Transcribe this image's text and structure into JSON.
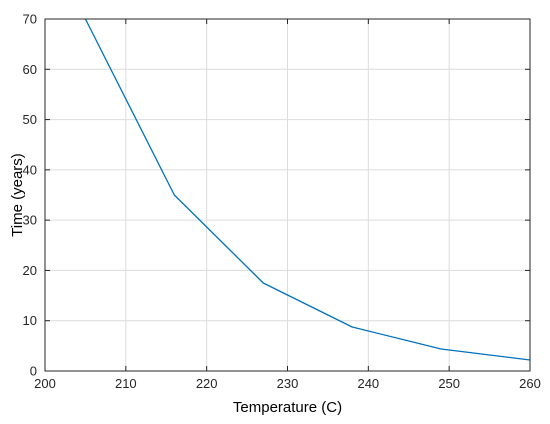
{
  "chart_data": {
    "type": "line",
    "title": "",
    "xlabel": "Temperature (C)",
    "ylabel": "Time (years)",
    "xlim": [
      200,
      260
    ],
    "ylim": [
      0,
      70
    ],
    "xticks": [
      200,
      210,
      220,
      230,
      240,
      250,
      260
    ],
    "yticks": [
      0,
      10,
      20,
      30,
      40,
      50,
      60,
      70
    ],
    "grid": true,
    "series": [
      {
        "color": "#0072BD",
        "x": [
          205,
          216,
          227,
          238,
          249,
          260
        ],
        "y": [
          70,
          35,
          17.5,
          8.75,
          4.375,
          2.1875
        ]
      }
    ]
  }
}
